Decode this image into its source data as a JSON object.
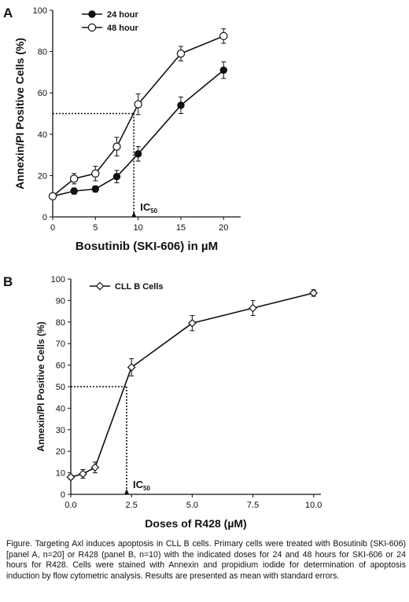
{
  "chart_data": [
    {
      "panel": "A",
      "type": "line",
      "xlabel": "Bosutinib (SKI-606) in µM",
      "ylabel": "Annexin/PI Positive Cells (%)",
      "xlim": [
        0,
        22
      ],
      "ylim": [
        0,
        100
      ],
      "xticks": [
        0,
        5,
        10,
        15,
        20
      ],
      "yticks": [
        0,
        20,
        40,
        60,
        80,
        100
      ],
      "legend_position": "top-left",
      "series": [
        {
          "name": "24 hour",
          "marker": "filled-circle",
          "x": [
            0,
            2.5,
            5,
            7.5,
            10,
            15,
            20
          ],
          "y": [
            10,
            12.5,
            13.5,
            19.5,
            30.5,
            54,
            71
          ],
          "err": [
            1,
            1.5,
            1.5,
            3,
            3.5,
            4,
            4
          ]
        },
        {
          "name": "48 hour",
          "marker": "open-circle",
          "x": [
            0,
            2.5,
            5,
            7.5,
            10,
            15,
            20
          ],
          "y": [
            10,
            18.5,
            21,
            34,
            54.5,
            79,
            87.5
          ],
          "err": [
            1,
            2.5,
            3.5,
            4.5,
            5,
            3.5,
            3.5
          ]
        }
      ],
      "reference": {
        "y": 50,
        "x": 9.5,
        "label_main": "IC",
        "label_sub": "50"
      }
    },
    {
      "panel": "B",
      "type": "line",
      "xlabel": "Doses of R428 (µM)",
      "ylabel": "Annexin/PI Positive Cells (%)",
      "xlim": [
        0,
        10.3
      ],
      "ylim": [
        0,
        100
      ],
      "xticks": [
        "0.0",
        "2.5",
        "5.0",
        "7.5",
        "10.0"
      ],
      "yticks": [
        0,
        10,
        20,
        30,
        40,
        50,
        60,
        70,
        80,
        90,
        100
      ],
      "legend_position": "top-left",
      "series": [
        {
          "name": "CLL B Cells",
          "marker": "open-diamond",
          "x": [
            0,
            0.5,
            1,
            2.5,
            5,
            7.5,
            10
          ],
          "y": [
            8,
            9.5,
            12.5,
            59,
            79.5,
            86.5,
            93.5
          ],
          "err": [
            1,
            2,
            2.5,
            4,
            3.5,
            3.5,
            1.5
          ]
        }
      ],
      "reference": {
        "y": 50,
        "x": 2.3,
        "label_main": "IC",
        "label_sub": "50"
      }
    }
  ],
  "caption": "Figure.  Targeting Axl induces apoptosis in CLL B cells. Primary cells were treated with Bosutinib (SKI-606) [panel A, n=20] or R428 (panel B, n=10) with the indicated doses for 24 and 48 hours for SKI-606 or 24 hours for R428. Cells were stained with Annexin and propidium iodide for determination of apoptosis induction by flow cytometric analysis. Results are presented as mean with standard errors."
}
